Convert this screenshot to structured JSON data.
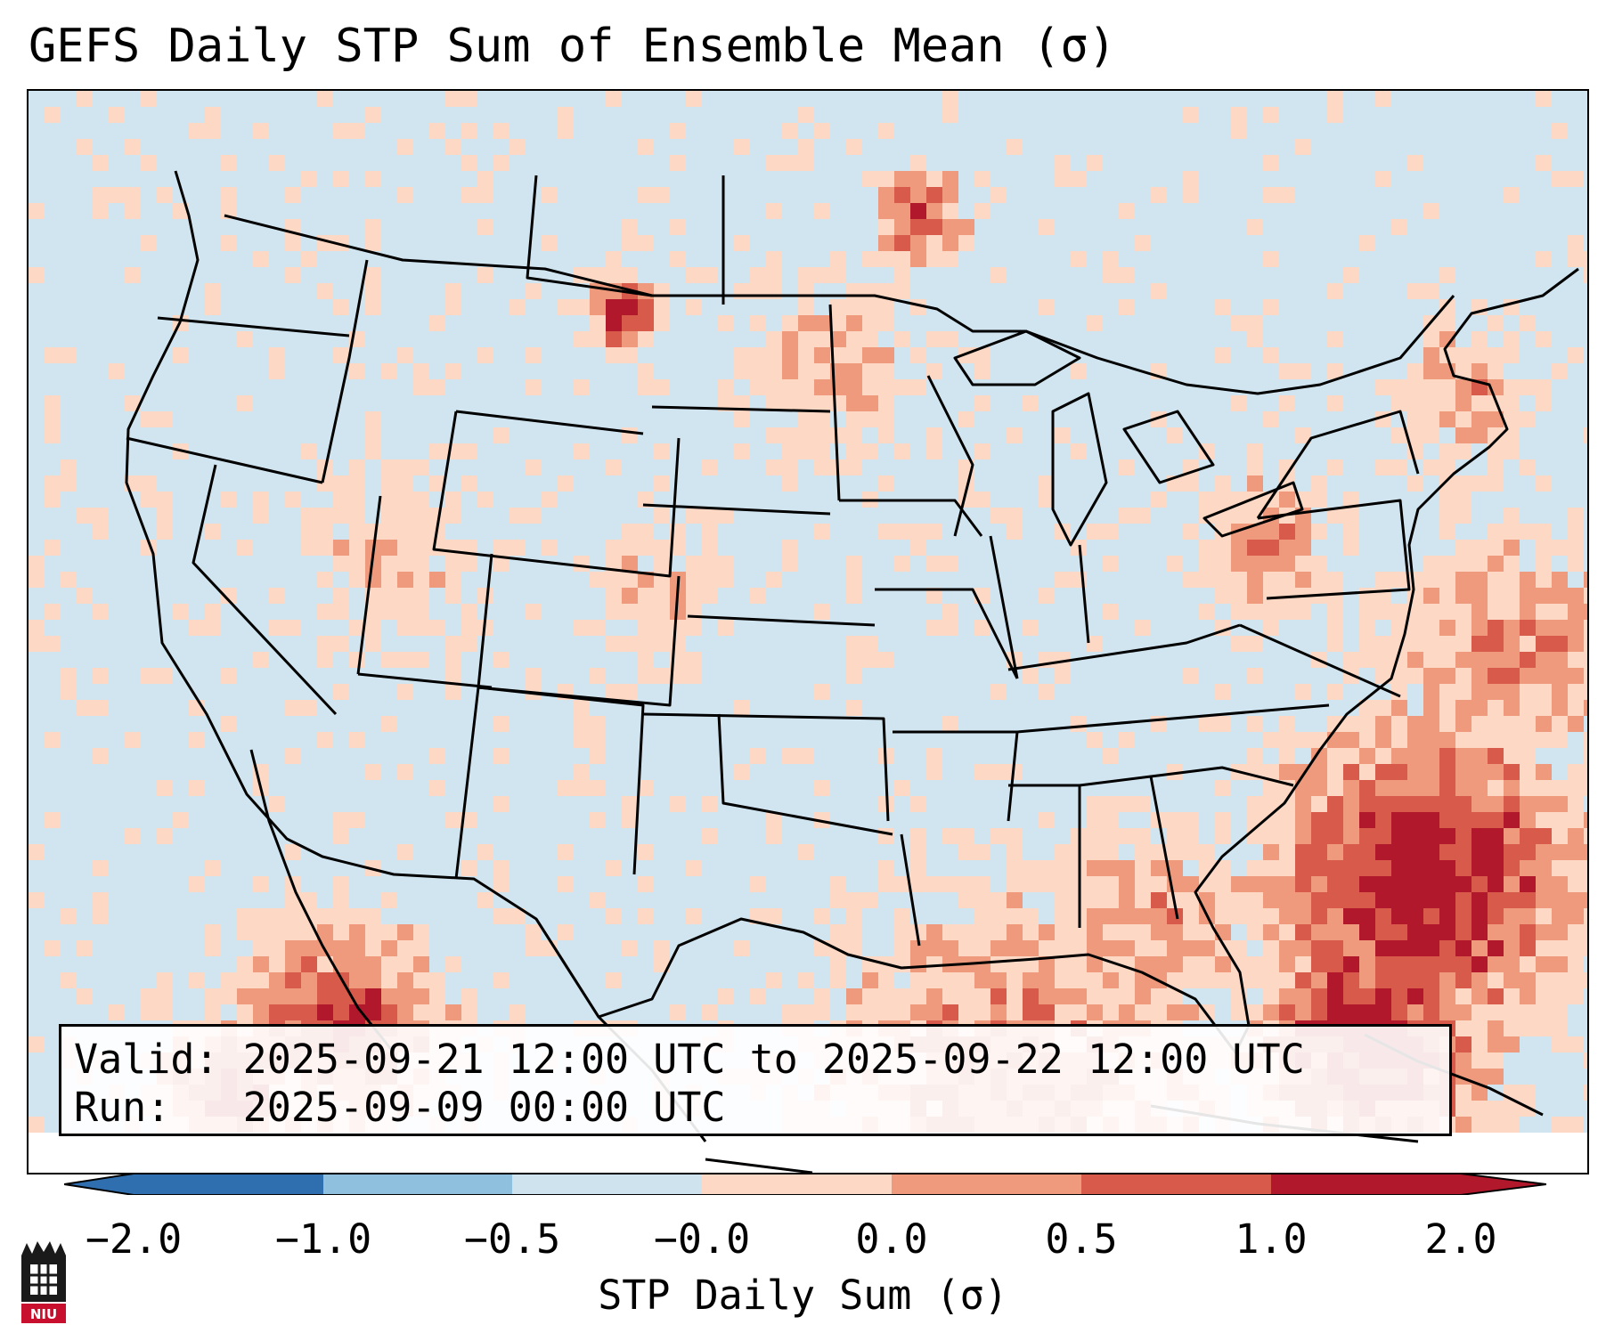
{
  "title": "GEFS Daily STP Sum of Ensemble Mean (σ)",
  "info": {
    "valid_line": "Valid: 2025-09-21 12:00 UTC to 2025-09-22 12:00 UTC",
    "run_line": "Run:   2025-09-09 00:00 UTC"
  },
  "colorbar": {
    "label": "STP Daily Sum (σ)",
    "ticks": [
      "−2.0",
      "−1.0",
      "−0.5",
      "−0.0",
      "0.0",
      "0.5",
      "1.0",
      "2.0"
    ],
    "colors": [
      "#2f6fb0",
      "#8fc0dd",
      "#cfe3ef",
      "#f9f9f9",
      "#fcd8c5",
      "#ef9a7c",
      "#d75a4b",
      "#b2182b"
    ]
  },
  "map": {
    "background_color": "#d1e5f0",
    "region": "Contiguous United States",
    "levels": [
      "#cfe3ef",
      "#fcd8c5",
      "#ef9a7c",
      "#d75a4b",
      "#b2182b"
    ]
  },
  "logo": {
    "text": "NIU"
  }
}
